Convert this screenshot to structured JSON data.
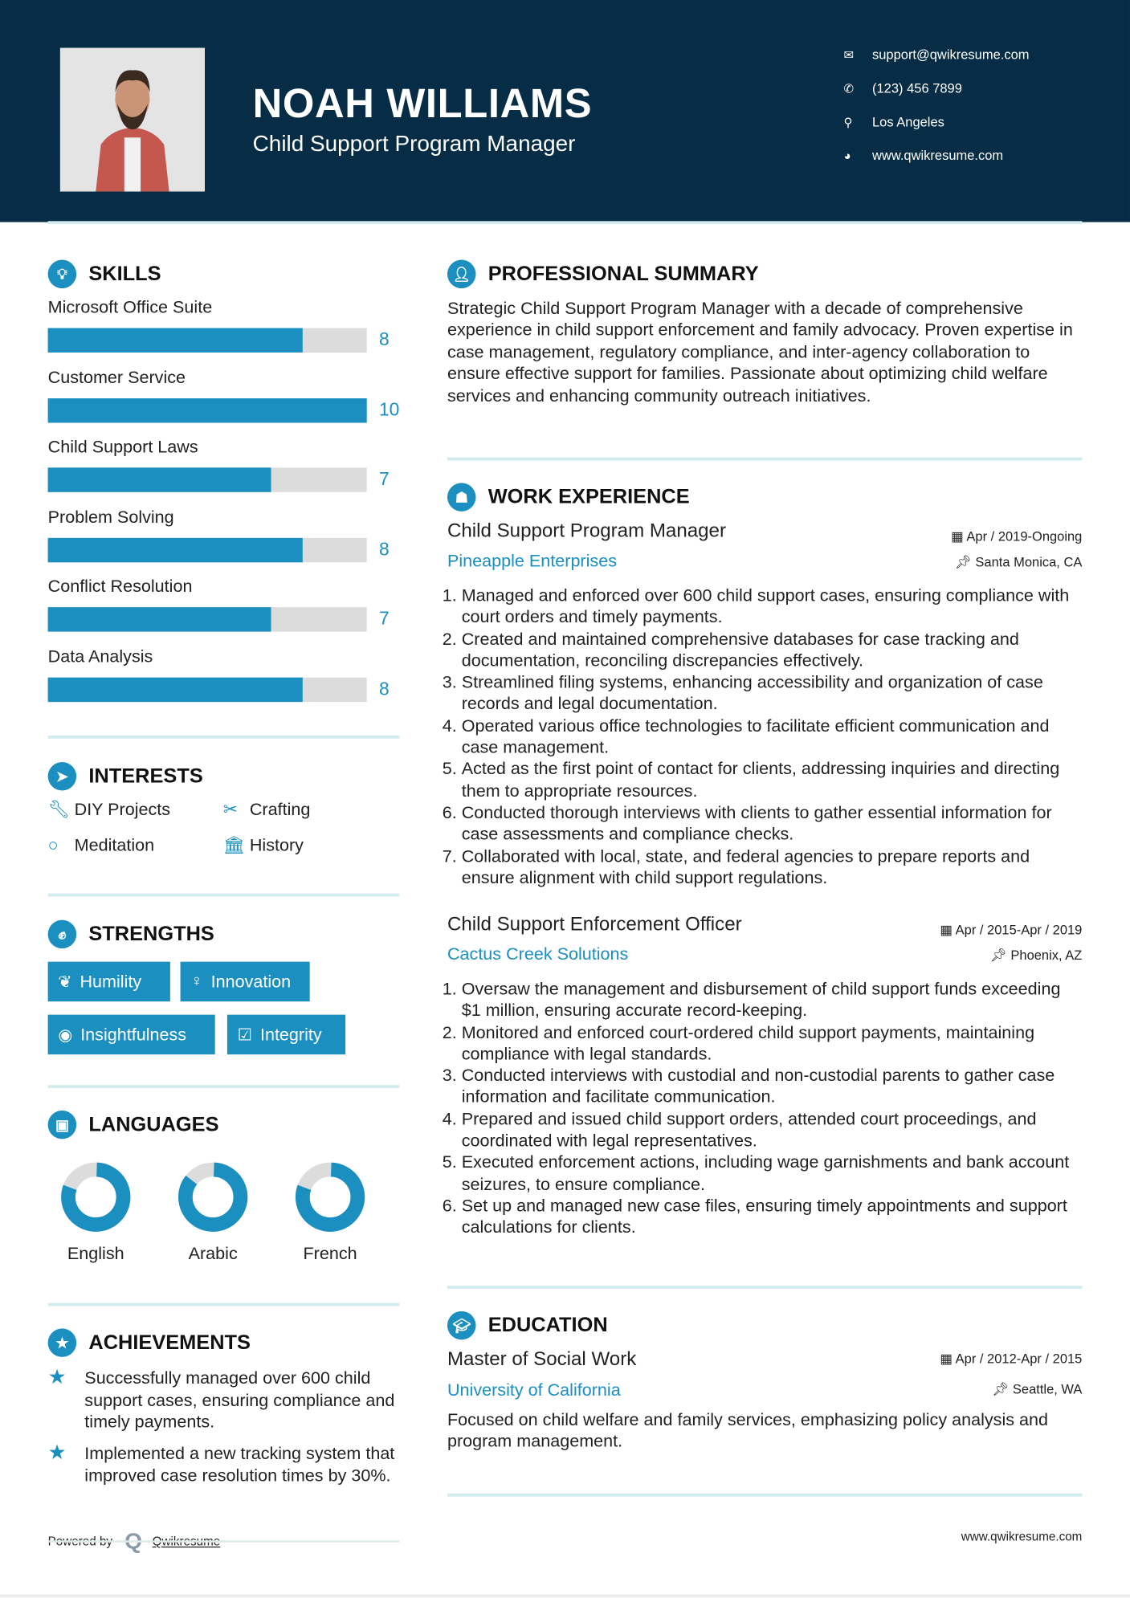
{
  "header": {
    "name": "NOAH WILLIAMS",
    "title": "Child Support Program Manager",
    "contacts": [
      {
        "icon": "envelope-icon",
        "text": "support@qwikresume.com"
      },
      {
        "icon": "phone-icon",
        "text": "(123) 456 7899"
      },
      {
        "icon": "map-pin-icon",
        "text": "Los Angeles"
      },
      {
        "icon": "globe-icon",
        "text": "www.qwikresume.com"
      }
    ]
  },
  "colors": {
    "header_bg": "#062d45",
    "accent": "#1a8fc0",
    "divider": "#d3ecef",
    "bar_track": "#dcdcdc"
  },
  "skills": {
    "heading": "SKILLS",
    "max": 10,
    "items": [
      {
        "label": "Microsoft Office Suite",
        "value": "8"
      },
      {
        "label": "Customer Service",
        "value": "10"
      },
      {
        "label": "Child Support Laws",
        "value": "7"
      },
      {
        "label": "Problem Solving",
        "value": "8"
      },
      {
        "label": "Conflict Resolution",
        "value": "7"
      },
      {
        "label": "Data Analysis",
        "value": "8"
      }
    ]
  },
  "interests": {
    "heading": "INTERESTS",
    "items": [
      {
        "icon": "wrench-icon",
        "label": "DIY Projects"
      },
      {
        "icon": "scissors-icon",
        "label": "Crafting"
      },
      {
        "icon": "circle-icon",
        "label": "Meditation"
      },
      {
        "icon": "bank-icon",
        "label": "History"
      }
    ]
  },
  "strengths": {
    "heading": "STRENGTHS",
    "items": [
      {
        "icon": "leaf-icon",
        "label": "Humility"
      },
      {
        "icon": "lightbulb-icon",
        "label": "Innovation"
      },
      {
        "icon": "eye-icon",
        "label": "Insightfulness"
      },
      {
        "icon": "check-square-icon",
        "label": "Integrity"
      }
    ]
  },
  "languages": {
    "heading": "LANGUAGES",
    "items": [
      {
        "label": "English",
        "percent": 80
      },
      {
        "label": "Arabic",
        "percent": 85
      },
      {
        "label": "French",
        "percent": 80
      }
    ]
  },
  "achievements": {
    "heading": "ACHIEVEMENTS",
    "items": [
      "Successfully managed over 600 child support cases, ensuring compliance and timely payments.",
      "Implemented a new tracking system that improved case resolution times by 30%."
    ]
  },
  "summary": {
    "heading": "PROFESSIONAL SUMMARY",
    "text": "Strategic Child Support Program Manager with a decade of comprehensive experience in child support enforcement and family advocacy. Proven expertise in case management, regulatory compliance, and inter-agency collaboration to ensure effective support for families. Passionate about optimizing child welfare services and enhancing community outreach initiatives."
  },
  "experience": {
    "heading": "WORK EXPERIENCE",
    "jobs": [
      {
        "title": "Child Support Program Manager",
        "company": "Pineapple Enterprises",
        "date": "Apr / 2019-Ongoing",
        "location": "Santa Monica, CA",
        "bullets": [
          "Managed and enforced over 600 child support cases, ensuring compliance with court orders and timely payments.",
          "Created and maintained comprehensive databases for case tracking and documentation, reconciling discrepancies effectively.",
          "Streamlined filing systems, enhancing accessibility and organization of case records and legal documentation.",
          "Operated various office technologies to facilitate efficient communication and case management.",
          "Acted as the first point of contact for clients, addressing inquiries and directing them to appropriate resources.",
          "Conducted thorough interviews with clients to gather essential information for case assessments and compliance checks.",
          "Collaborated with local, state, and federal agencies to prepare reports and ensure alignment with child support regulations."
        ]
      },
      {
        "title": "Child Support Enforcement Officer",
        "company": "Cactus Creek Solutions",
        "date": "Apr / 2015-Apr / 2019",
        "location": "Phoenix, AZ",
        "bullets": [
          "Oversaw the management and disbursement of child support funds exceeding $1 million, ensuring accurate record-keeping.",
          "Monitored and enforced court-ordered child support payments, maintaining compliance with legal standards.",
          "Conducted interviews with custodial and non-custodial parents to gather case information and facilitate communication.",
          "Prepared and issued child support orders, attended court proceedings, and coordinated with legal representatives.",
          "Executed enforcement actions, including wage garnishments and bank account seizures, to ensure compliance.",
          "Set up and managed new case files, ensuring timely appointments and support calculations for clients."
        ]
      }
    ]
  },
  "education": {
    "heading": "EDUCATION",
    "degree": "Master of Social Work",
    "school": "University of California",
    "date": "Apr / 2012-Apr / 2015",
    "location": "Seattle, WA",
    "description": "Focused on child welfare and family services, emphasizing policy analysis and program management."
  },
  "footer": {
    "powered_by": "Powered by",
    "brand": "Qwikresume",
    "website": "www.qwikresume.com"
  }
}
